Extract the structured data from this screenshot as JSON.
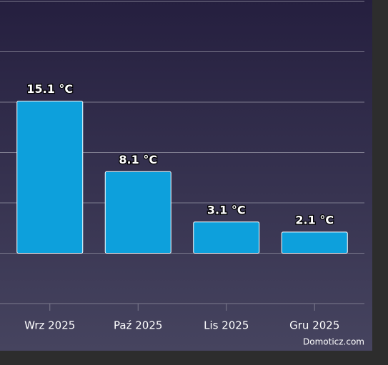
{
  "chart_data": {
    "type": "bar",
    "categories": [
      "Wrz 2025",
      "Paź 2025",
      "Lis 2025",
      "Gru 2025"
    ],
    "values": [
      15.1,
      8.1,
      3.1,
      2.1
    ],
    "value_labels": [
      "15.1 °C",
      "8.1 °C",
      "3.1 °C",
      "2.1 °C"
    ],
    "color": "#0da0dc",
    "ylim": [
      -5,
      25
    ],
    "yticks": [
      -5,
      0,
      5,
      10,
      15,
      20,
      25
    ],
    "grid": true,
    "credit": "Domoticz.com"
  }
}
